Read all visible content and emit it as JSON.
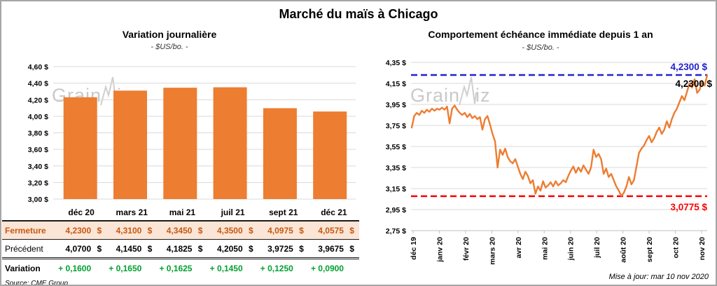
{
  "header": {
    "title": "Marché du maïs à Chicago"
  },
  "watermark": "GrainWiz",
  "footer": {
    "updated": "Mise à jour: mar 10 nov 2020"
  },
  "colors": {
    "orange": "#ED7D31",
    "grid": "#D9D9D9",
    "axis": "#BFBFBF",
    "high_blue": "#2222CC",
    "low_red": "#FF0000",
    "variation_green": "#00A12F",
    "fermeture_bg": "#FBE5D6",
    "fermeture_text": "#C55A11"
  },
  "chart_data": [
    {
      "type": "bar",
      "title": "Variation journalière",
      "subtitle": "- $US/bo. -",
      "categories": [
        "déc 20",
        "mars 21",
        "mai 21",
        "juil 21",
        "sept 21",
        "déc 21"
      ],
      "values": [
        4.23,
        4.31,
        4.345,
        4.35,
        4.0975,
        4.0575
      ],
      "ylim": [
        3.0,
        4.6
      ],
      "ytick_step": 0.2,
      "ytick_labels": [
        "4,60 $",
        "4,40 $",
        "4,20 $",
        "4,00 $",
        "3,80 $",
        "3,60 $",
        "3,40 $",
        "3,20 $",
        "3,00 $"
      ],
      "grid": true,
      "legend": false,
      "bar_color": "#ED7D31"
    },
    {
      "type": "line",
      "title": "Comportement échéance immédiate depuis 1 an",
      "subtitle": "- $US/bo. -",
      "x_labels": [
        "déc 19",
        "janv 20",
        "févr 20",
        "mars 20",
        "avr 20",
        "mai 20",
        "juin 20",
        "juil 20",
        "août 20",
        "sept 20",
        "oct 20",
        "nov 20"
      ],
      "values": [
        3.73,
        3.84,
        3.87,
        3.85,
        3.89,
        3.87,
        3.9,
        3.88,
        3.91,
        3.89,
        3.91,
        3.9,
        3.92,
        3.9,
        3.93,
        3.77,
        3.91,
        3.94,
        3.9,
        3.87,
        3.85,
        3.87,
        3.83,
        3.86,
        3.82,
        3.84,
        3.81,
        3.83,
        3.71,
        3.81,
        3.84,
        3.76,
        3.67,
        3.6,
        3.35,
        3.52,
        3.47,
        3.53,
        3.45,
        3.41,
        3.39,
        3.43,
        3.36,
        3.29,
        3.24,
        3.31,
        3.27,
        3.2,
        3.23,
        3.1,
        3.17,
        3.13,
        3.22,
        3.16,
        3.18,
        3.21,
        3.17,
        3.22,
        3.18,
        3.2,
        3.23,
        3.21,
        3.27,
        3.32,
        3.36,
        3.3,
        3.35,
        3.31,
        3.37,
        3.33,
        3.29,
        3.35,
        3.52,
        3.45,
        3.48,
        3.43,
        3.29,
        3.34,
        3.26,
        3.29,
        3.23,
        3.17,
        3.13,
        3.08,
        3.11,
        3.17,
        3.26,
        3.19,
        3.23,
        3.36,
        3.49,
        3.53,
        3.56,
        3.61,
        3.65,
        3.59,
        3.63,
        3.69,
        3.73,
        3.67,
        3.71,
        3.79,
        3.73,
        3.81,
        3.87,
        3.91,
        3.97,
        4.03,
        3.99,
        4.07,
        4.15,
        4.11,
        4.19,
        4.06,
        4.09,
        4.17,
        4.13,
        4.23
      ],
      "ylim": [
        2.75,
        4.35
      ],
      "ytick_step": 0.2,
      "ytick_labels": [
        "4,35 $",
        "4,15 $",
        "3,95 $",
        "3,75 $",
        "3,55 $",
        "3,35 $",
        "3,15 $",
        "2,95 $",
        "2,75 $"
      ],
      "grid": true,
      "legend": false,
      "line_color": "#ED7D31",
      "annotations": {
        "high": {
          "value": 4.23,
          "label": "4,2300 $",
          "color": "#2222CC",
          "style": "dashed"
        },
        "last": {
          "value": 4.23,
          "label": "4,2300 $",
          "color": "#000000"
        },
        "low": {
          "value": 3.0775,
          "label": "3,0775 $",
          "color": "#FF0000",
          "style": "dashed"
        }
      }
    }
  ],
  "table": {
    "source": "Source: CME Group",
    "currency": "$",
    "columns": [
      "déc 20",
      "mars 21",
      "mai 21",
      "juil 21",
      "sept 21",
      "déc 21"
    ],
    "rows": {
      "fermeture": {
        "label": "Fermeture",
        "values": [
          "4,2300",
          "4,3100",
          "4,3450",
          "4,3500",
          "4,0975",
          "4,0575"
        ]
      },
      "precedent": {
        "label": "Précédent",
        "values": [
          "4,0700",
          "4,1450",
          "4,1825",
          "4,2050",
          "3,9725",
          "3,9675"
        ]
      },
      "variation": {
        "label": "Variation",
        "values": [
          "+ 0,1600",
          "+ 0,1650",
          "+ 0,1625",
          "+ 0,1450",
          "+ 0,1250",
          "+ 0,0900"
        ]
      }
    }
  }
}
